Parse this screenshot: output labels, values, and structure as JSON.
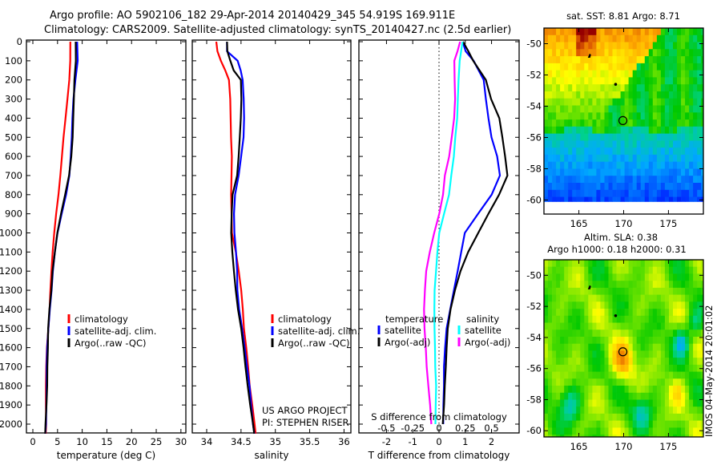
{
  "title": {
    "line1": "Argo profile: AO 5902106_182 29-Apr-2014 20140429_345 54.919S 169.911E",
    "line2": "Climatology: CARS2009. Satellite-adjusted climatology: synTS_20140427.nc (2.5d earlier)"
  },
  "colors": {
    "climatology": "#ff0000",
    "satellite": "#0000ff",
    "argo": "#000000",
    "sal_satellite": "#00ffff",
    "sal_argo": "#ff00ff"
  },
  "depth_ticks": [
    "0",
    "100",
    "200",
    "300",
    "400",
    "500",
    "600",
    "700",
    "800",
    "900",
    "1000",
    "1100",
    "1200",
    "1300",
    "1400",
    "1500",
    "1600",
    "1700",
    "1800",
    "1900",
    "2000"
  ],
  "chart_data": [
    {
      "type": "line",
      "name": "temperature-profile",
      "xlabel": "temperature (deg C)",
      "ylabel": "depth",
      "xlim": [
        -1.3,
        31
      ],
      "ylim": [
        2050,
        0
      ],
      "xticks": [
        "0",
        "5",
        "10",
        "15",
        "20",
        "25",
        "30"
      ],
      "xtick_values": [
        0,
        5,
        10,
        15,
        20,
        25,
        30
      ],
      "depth": [
        0,
        100,
        200,
        300,
        400,
        500,
        600,
        700,
        800,
        900,
        1000,
        1100,
        1200,
        1300,
        1400,
        1500,
        1600,
        1700,
        1800,
        1900,
        2000,
        2050
      ],
      "series": [
        {
          "name": "climatology",
          "color": "#ff0000",
          "values": [
            7.6,
            7.5,
            7.3,
            7.0,
            6.7,
            6.3,
            5.9,
            5.5,
            5.1,
            4.7,
            4.4,
            4.1,
            3.8,
            3.5,
            3.3,
            3.1,
            2.9,
            2.8,
            2.7,
            2.6,
            2.6,
            2.55
          ]
        },
        {
          "name": "satellite-adj. clim.",
          "color": "#0000ff",
          "values": [
            8.9,
            9.0,
            8.6,
            8.3,
            8.1,
            7.9,
            7.6,
            7.3,
            6.7,
            5.9,
            5.1,
            4.5,
            4.0,
            3.7,
            3.4,
            3.2,
            3.0,
            2.85,
            2.75,
            2.65,
            2.6,
            2.55
          ]
        },
        {
          "name": "Argo(..raw -QC)",
          "color": "#000000",
          "values": [
            8.6,
            8.7,
            8.5,
            8.4,
            8.2,
            8.0,
            7.7,
            7.3,
            6.6,
            5.8,
            5.0,
            4.4,
            3.9,
            3.7,
            3.4,
            3.2,
            3.1,
            2.9,
            2.8,
            2.7,
            2.6,
            2.6
          ]
        }
      ],
      "legend": [
        "climatology",
        "satellite-adj. clim.",
        "Argo(..raw -QC)"
      ],
      "legend_position": "lower-center"
    },
    {
      "type": "line",
      "name": "salinity-profile",
      "xlabel": "salinity",
      "xlim": [
        33.79,
        36.1
      ],
      "ylim": [
        2050,
        0
      ],
      "xticks": [
        "34",
        "34.5",
        "35",
        "35.5",
        "36"
      ],
      "xtick_values": [
        34,
        34.5,
        35,
        35.5,
        36
      ],
      "depth": [
        0,
        50,
        100,
        150,
        200,
        300,
        400,
        500,
        600,
        700,
        800,
        900,
        1000,
        1100,
        1200,
        1300,
        1400,
        1500,
        1600,
        1700,
        1800,
        1900,
        2000,
        2050
      ],
      "series": [
        {
          "name": "climatology",
          "color": "#ff0000",
          "values": [
            34.14,
            34.15,
            34.2,
            34.27,
            34.33,
            34.35,
            34.35,
            34.35,
            34.36,
            34.36,
            34.36,
            34.37,
            34.37,
            34.42,
            34.46,
            34.5,
            34.53,
            34.55,
            34.58,
            34.6,
            34.62,
            34.66,
            34.7,
            34.72
          ]
        },
        {
          "name": "satellite-adj. clim.",
          "color": "#0000ff",
          "values": [
            34.29,
            34.29,
            34.45,
            34.5,
            34.53,
            34.54,
            34.54,
            34.53,
            34.5,
            34.47,
            34.42,
            34.4,
            34.4,
            34.42,
            34.44,
            34.45,
            34.48,
            34.52,
            34.55,
            34.58,
            34.62,
            34.65,
            34.68,
            34.7
          ]
        },
        {
          "name": "Argo(..raw -QC)",
          "color": "#000000",
          "values": [
            34.29,
            34.3,
            34.35,
            34.4,
            34.5,
            34.5,
            34.49,
            34.48,
            34.47,
            34.45,
            34.38,
            34.36,
            34.35,
            34.37,
            34.4,
            34.43,
            34.46,
            34.5,
            34.53,
            34.56,
            34.6,
            34.64,
            34.68,
            34.69
          ]
        }
      ],
      "legend": [
        "climatology",
        "satellite-adj. clim.",
        "Argo(..raw -QC)"
      ],
      "legend_position": "lower-center",
      "annotation": [
        "US ARGO PROJECT",
        "PI: STEPHEN RISER"
      ]
    },
    {
      "type": "line",
      "name": "difference-profile",
      "xlabel": "T difference from climatology",
      "x2label": "S difference from climatology",
      "xlim": [
        -3.05,
        3.05
      ],
      "x2lim": [
        -0.7625,
        0.7625
      ],
      "ylim": [
        2050,
        0
      ],
      "xticks": [
        "-2",
        "-1",
        "0",
        "1",
        "2"
      ],
      "xtick_values": [
        -2,
        -1,
        0,
        1,
        2
      ],
      "x2ticks": [
        "-0.5",
        "-0.25",
        "0",
        "0.25",
        "0.5"
      ],
      "x2tick_values": [
        -0.5,
        -0.25,
        0,
        0.25,
        0.5
      ],
      "depth": [
        0,
        50,
        100,
        200,
        300,
        400,
        500,
        600,
        700,
        800,
        900,
        1000,
        1100,
        1200,
        1300,
        1400,
        1500,
        1600,
        1700,
        1800,
        1900,
        2000
      ],
      "series": [
        {
          "name": "temperature satellite",
          "axis": "T",
          "color": "#0000ff",
          "values": [
            0.9,
            1.0,
            1.3,
            1.7,
            1.8,
            1.9,
            2.0,
            2.2,
            2.3,
            2.0,
            1.5,
            1.0,
            0.85,
            0.7,
            0.55,
            0.42,
            0.3,
            0.25,
            0.2,
            0.18,
            0.15,
            0.15
          ]
        },
        {
          "name": "temperature Argo(-adj)",
          "axis": "T",
          "color": "#000000",
          "values": [
            0.9,
            1.1,
            1.3,
            1.8,
            2.0,
            2.3,
            2.4,
            2.5,
            2.6,
            2.3,
            1.9,
            1.5,
            1.1,
            0.8,
            0.6,
            0.45,
            0.35,
            0.3,
            0.25,
            0.2,
            0.18,
            0.15
          ]
        },
        {
          "name": "salinity satellite",
          "axis": "S",
          "color": "#00ffff",
          "values": [
            0.22,
            0.21,
            0.2,
            0.19,
            0.18,
            0.17,
            0.15,
            0.14,
            0.12,
            0.1,
            0.05,
            0.0,
            -0.02,
            -0.03,
            -0.04,
            -0.04,
            -0.04,
            -0.04,
            -0.04,
            -0.03,
            -0.03,
            -0.03
          ]
        },
        {
          "name": "salinity Argo(-adj)",
          "axis": "S",
          "color": "#ff00ff",
          "values": [
            0.2,
            0.18,
            0.15,
            0.15,
            0.15,
            0.14,
            0.12,
            0.1,
            0.06,
            0.04,
            0.0,
            -0.05,
            -0.09,
            -0.12,
            -0.13,
            -0.14,
            -0.14,
            -0.13,
            -0.12,
            -0.1,
            -0.08,
            -0.07
          ]
        }
      ],
      "legend": {
        "temperature_heading": "temperature",
        "salinity_heading": "salinity",
        "items": [
          "satellite",
          "Argo(-adj)",
          "satellite",
          "Argo(-adj)"
        ]
      },
      "zero_line": "dotted"
    },
    {
      "type": "heatmap",
      "name": "sst-map",
      "title": "sat. SST: 8.81 Argo: 8.71",
      "xlim": [
        161.1,
        178.9
      ],
      "ylim": [
        -60.9,
        -49
      ],
      "data_lat_min": -60.1,
      "xticks": [
        "165",
        "170",
        "175"
      ],
      "xtick_values": [
        165,
        170,
        175
      ],
      "yticks": [
        "-50",
        "-52",
        "-54",
        "-56",
        "-58",
        "-60"
      ],
      "ytick_values": [
        -50,
        -52,
        -54,
        -56,
        -58,
        -60
      ],
      "profile_location": {
        "lon": 169.911,
        "lat": -54.919
      },
      "colormap": "jet"
    },
    {
      "type": "heatmap",
      "name": "sla-map",
      "title": "Altim. SLA: 0.38",
      "subtitle": "Argo h1000: 0.18 h2000: 0.31",
      "xlim": [
        161.1,
        178.9
      ],
      "ylim": [
        -60.4,
        -49
      ],
      "xticks": [
        "165",
        "170",
        "175"
      ],
      "xtick_values": [
        165,
        170,
        175
      ],
      "yticks": [
        "-50",
        "-52",
        "-54",
        "-56",
        "-58",
        "-60"
      ],
      "ytick_values": [
        -50,
        -52,
        -54,
        -56,
        -58,
        -60
      ],
      "profile_location": {
        "lon": 169.911,
        "lat": -54.919
      },
      "colormap": "jet"
    }
  ],
  "timestamp": "IMOS 04-May-2014 20:01:02"
}
